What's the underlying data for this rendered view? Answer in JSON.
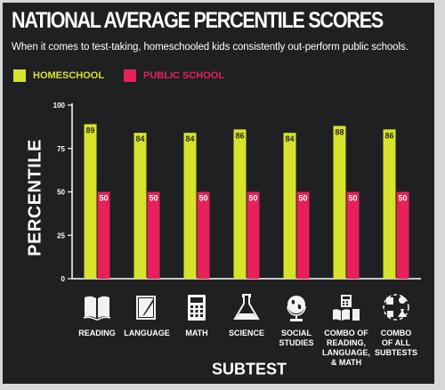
{
  "header": {
    "title": "NATIONAL AVERAGE PERCENTILE SCORES",
    "subtitle": "When it comes to test-taking, homeschooled kids consistently out-perform public schools."
  },
  "legend": [
    {
      "label": "HOMESCHOOL",
      "color": "#d7e32a"
    },
    {
      "label": "PUBLIC SCHOOL",
      "color": "#e8205a"
    }
  ],
  "icons": [
    "open-book-icon",
    "notepad-pencil-icon",
    "calculator-icon",
    "flask-icon",
    "globe-icon",
    "book-and-calculator-icon",
    "combined-subjects-icon"
  ],
  "chart_data": {
    "type": "bar",
    "ylabel": "PERCENTILE",
    "xlabel": "SUBTEST",
    "ylim": [
      0,
      100
    ],
    "yticks": [
      0,
      25,
      50,
      75,
      100
    ],
    "categories": [
      "READING",
      "LANGUAGE",
      "MATH",
      "SCIENCE",
      "SOCIAL\nSTUDIES",
      "COMBO OF\nREADING,\nLANGUAGE,\n& MATH",
      "COMBO\nOF ALL\nSUBTESTS"
    ],
    "series": [
      {
        "name": "HOMESCHOOL",
        "color": "#d7e32a",
        "values": [
          89,
          84,
          84,
          86,
          84,
          88,
          86
        ]
      },
      {
        "name": "PUBLIC SCHOOL",
        "color": "#e8205a",
        "values": [
          50,
          50,
          50,
          50,
          50,
          50,
          50
        ]
      }
    ],
    "data_labels": true,
    "grid": false,
    "legend_position": "top-left"
  }
}
